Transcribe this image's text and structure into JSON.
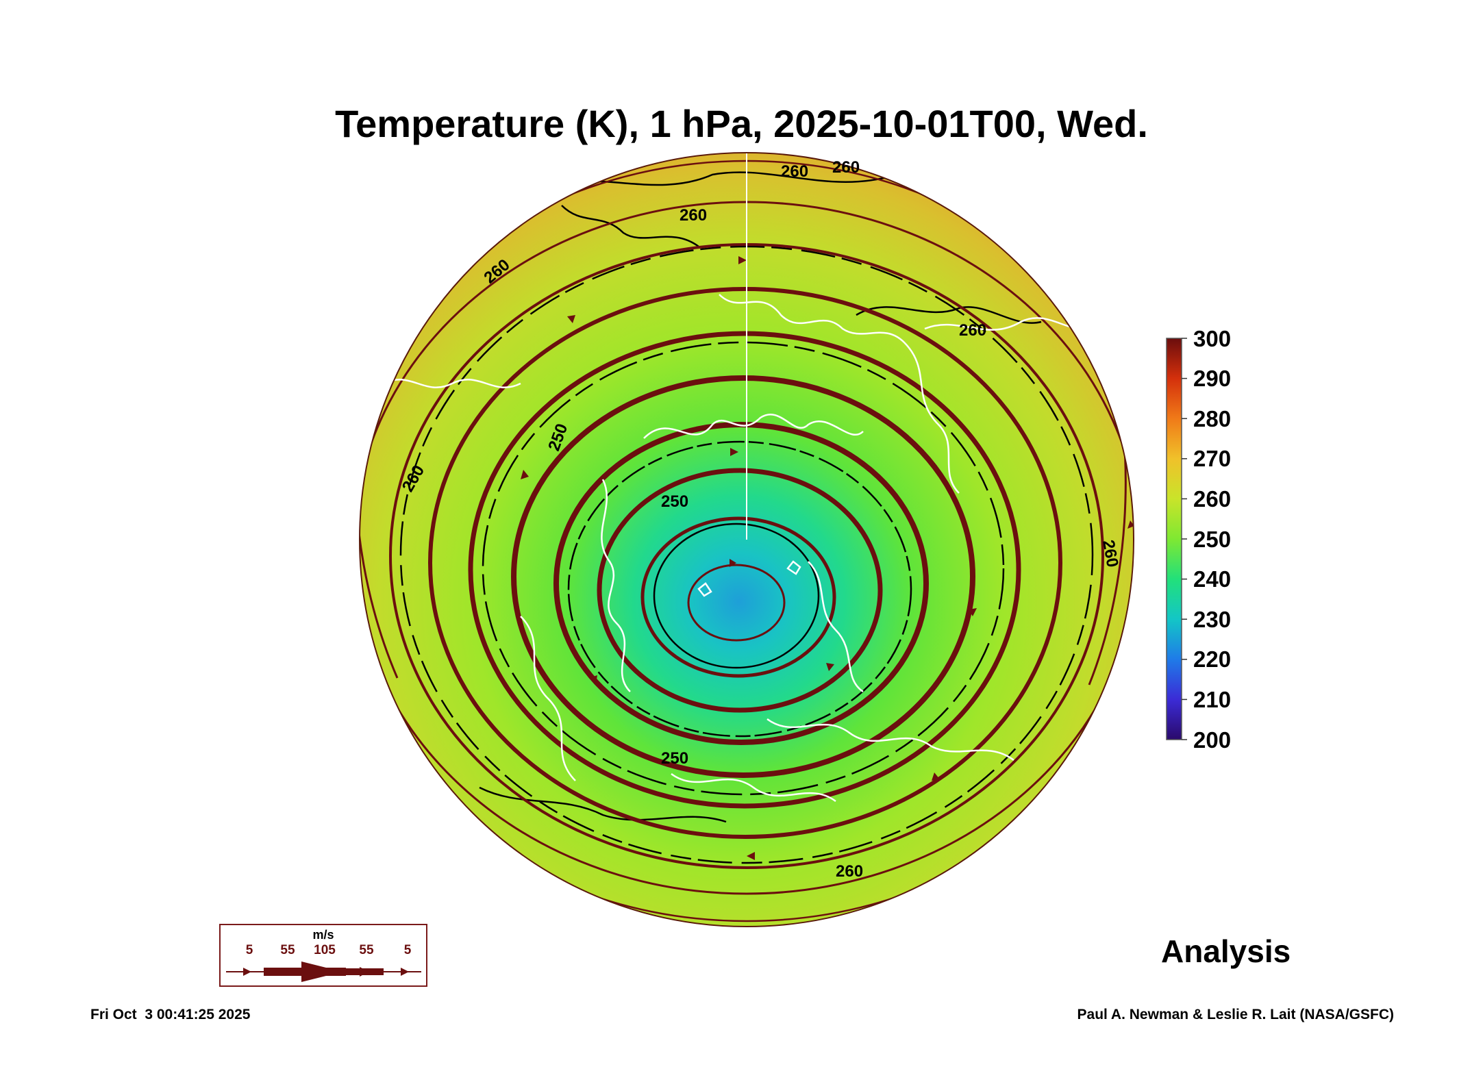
{
  "title": "Temperature (K), 1 hPa, 2025-10-01T00, Wed.",
  "colorbar": {
    "unit": "",
    "ticks": [
      "300",
      "290",
      "280",
      "270",
      "260",
      "250",
      "240",
      "230",
      "220",
      "210",
      "200"
    ],
    "min": 200,
    "max": 300,
    "colors": [
      "#2a0a6b",
      "#3b2bd6",
      "#1f7be8",
      "#13c6c6",
      "#22e07a",
      "#7fe832",
      "#c9e42a",
      "#f0c12a",
      "#f07a18",
      "#d4300c",
      "#6b0d0d"
    ]
  },
  "contour_labels": [
    "260",
    "260",
    "260",
    "260",
    "250",
    "250",
    "260",
    "260",
    "250",
    "260",
    "260"
  ],
  "wind_legend": {
    "unit": "m/s",
    "speeds": [
      "5",
      "55",
      "105",
      "55",
      "5"
    ]
  },
  "mode_label": "Analysis",
  "footer": {
    "timestamp": "Fri Oct  3 00:41:25 2025",
    "credit": "Paul A. Newman & Leslie R. Lait (NASA/GSFC)"
  },
  "colors": {
    "streamline": "#6b0f0f",
    "contour": "#000000",
    "coastline": "#ffffff"
  }
}
